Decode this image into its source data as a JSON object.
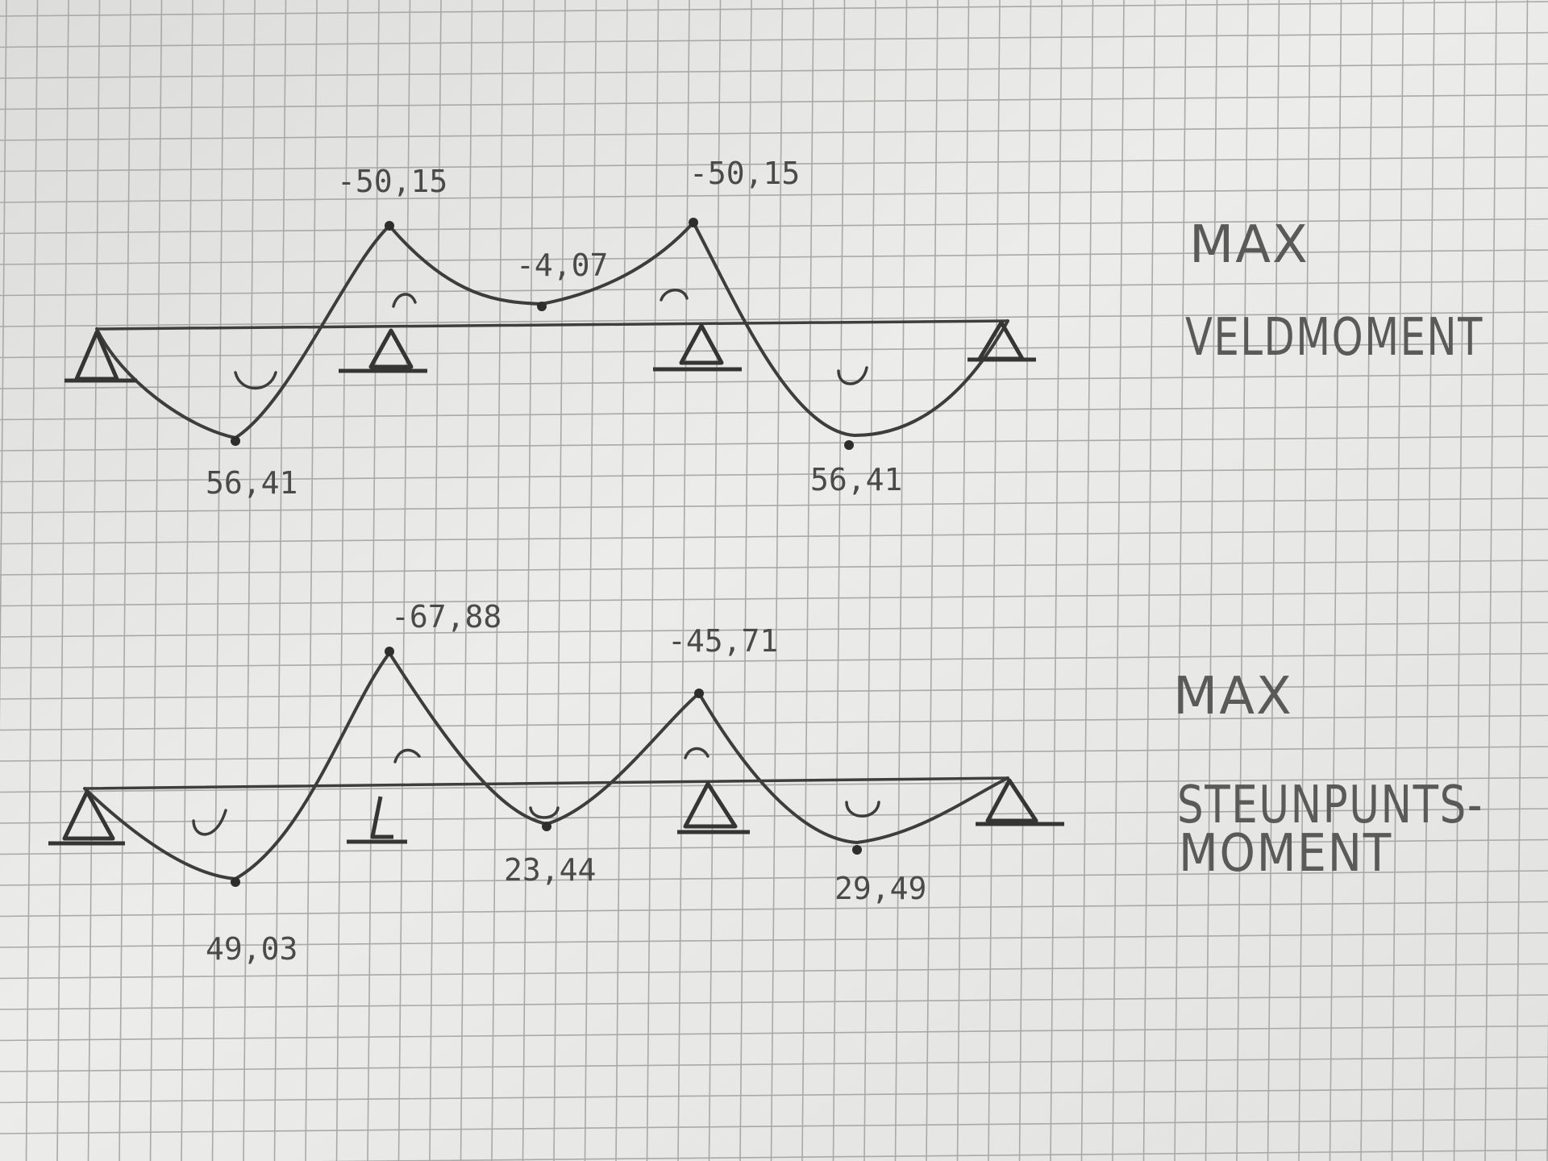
{
  "diagrams": [
    {
      "title_line1": "MAX",
      "title_line2": "VELDMOMENT",
      "values": {
        "support_left": "-50,15",
        "support_right": "-50,15",
        "midspan_center": "-4,07",
        "field_left": "56,41",
        "field_right": "56,41"
      }
    },
    {
      "title_line1": "MAX",
      "title_line2": "STEUNPUNTS-",
      "title_line3": "MOMENT",
      "values": {
        "support_left": "-67,88",
        "support_right": "-45,71",
        "field_left": "49,03",
        "field_center": "23,44",
        "field_right": "29,49"
      }
    }
  ]
}
